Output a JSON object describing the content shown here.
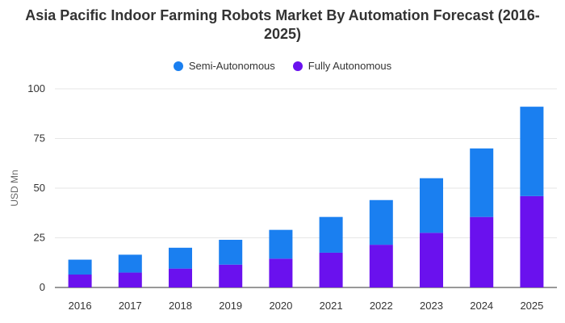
{
  "chart_data": {
    "type": "bar",
    "stacked": true,
    "title": "Asia Pacific Indoor Farming Robots Market By Automation Forecast (2016-2025)",
    "xlabel": "",
    "ylabel": "USD Mn",
    "ylim": [
      0,
      100
    ],
    "yticks": [
      0,
      25,
      50,
      75,
      100
    ],
    "grid": true,
    "legend_position": "top-center",
    "categories": [
      "2016",
      "2017",
      "2018",
      "2019",
      "2020",
      "2021",
      "2022",
      "2023",
      "2024",
      "2025"
    ],
    "series": [
      {
        "name": "Fully Autonomous",
        "color": "#6a11ee",
        "values": [
          6.5,
          7.5,
          9.5,
          11.5,
          14.5,
          17.5,
          21.5,
          27.5,
          35.5,
          46
        ]
      },
      {
        "name": "Semi-Autonomous",
        "color": "#1a7ff0",
        "values": [
          7.5,
          9.0,
          10.5,
          12.5,
          14.5,
          18.0,
          22.5,
          27.5,
          34.5,
          45
        ]
      }
    ],
    "legend_order": [
      "Semi-Autonomous",
      "Fully Autonomous"
    ]
  }
}
